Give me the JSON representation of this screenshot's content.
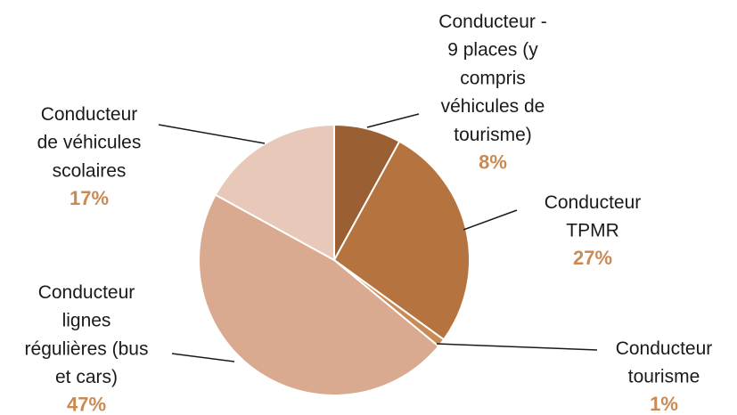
{
  "chart_data": {
    "type": "pie",
    "categories": [
      "Conducteur -\n9 places (y\ncompris\nvéhicules de\ntourisme)",
      "Conducteur\nTPMR",
      "Conducteur\ntourisme",
      "Conducteur\nlignes\nrégulières (bus\net cars)",
      "Conducteur\nde véhicules\nscolaires"
    ],
    "values": [
      8,
      27,
      1,
      47,
      17
    ],
    "value_labels": [
      "8%",
      "27%",
      "1%",
      "47%",
      "17%"
    ],
    "colors": [
      "#9a5f33",
      "#b5743f",
      "#c98b55",
      "#d9aa8f",
      "#e8c8b8"
    ]
  }
}
